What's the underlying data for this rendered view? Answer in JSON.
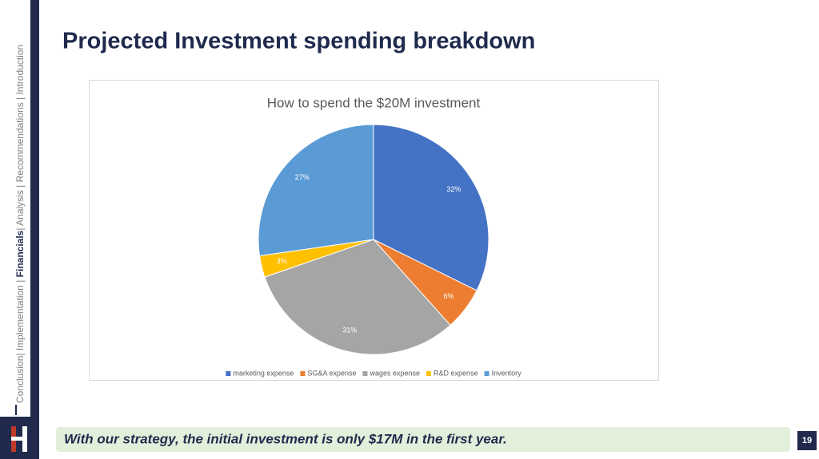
{
  "slide": {
    "title": "Projected Investment spending breakdown",
    "nav": [
      "Conclusion|",
      " Implementation | ",
      "Financials",
      "| ",
      "Analysis | Recommendations | Introduction"
    ],
    "banner": "With our strategy, the initial investment is only $17M in the first year.",
    "page_number": "19"
  },
  "chart_data": {
    "type": "pie",
    "title": "How to spend the $20M investment",
    "categories": [
      "marketing expense",
      "SG&A expense",
      "wages expense",
      "R&D expense",
      "Inventory"
    ],
    "values": [
      32,
      6,
      31,
      3,
      27
    ],
    "value_labels": [
      "32%",
      "6%",
      "31%",
      "3%",
      "27%"
    ],
    "colors": [
      "#4472c4",
      "#ed7d31",
      "#a5a5a5",
      "#ffc000",
      "#5b9bd5"
    ],
    "legend": "bottom"
  }
}
